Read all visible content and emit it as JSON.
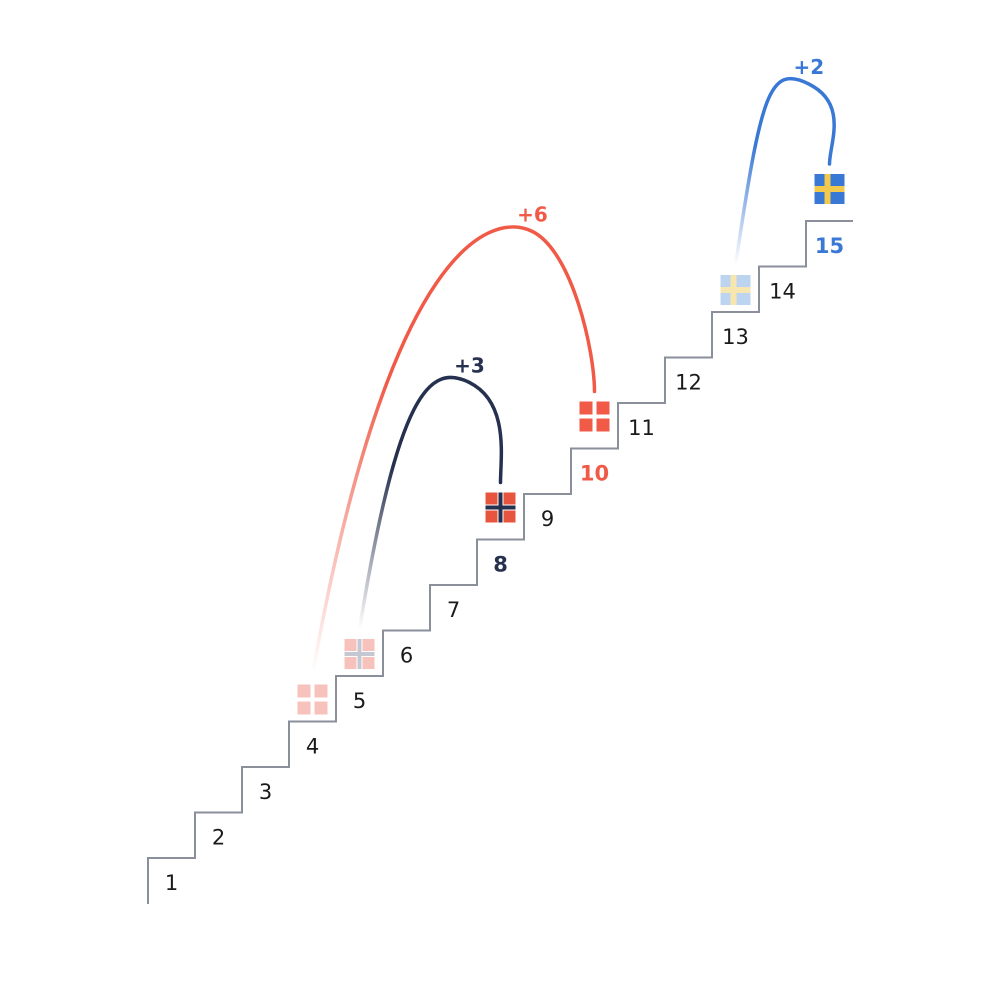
{
  "steps": [
    "1",
    "2",
    "3",
    "4",
    "5",
    "6",
    "7",
    "8",
    "9",
    "10",
    "11",
    "12",
    "13",
    "14",
    "15"
  ],
  "colors": {
    "stairs": "#8a8f9c",
    "step_text": "#1a1a1a"
  },
  "moves": [
    {
      "id": "denmark",
      "flag": "denmark-flag-icon",
      "from_step": 4,
      "to_step": 10,
      "jump_label": "+6",
      "rank_label": "10",
      "color": "#f05a47",
      "faded_color": "#f7c2bb"
    },
    {
      "id": "norway",
      "flag": "norway-flag-icon",
      "from_step": 5,
      "to_step": 8,
      "jump_label": "+3",
      "rank_label": "8",
      "color": "#26304f",
      "faded_color": "#f7c2bb"
    },
    {
      "id": "sweden",
      "flag": "sweden-flag-icon",
      "from_step": 13,
      "to_step": 15,
      "jump_label": "+2",
      "rank_label": "15",
      "color": "#3a78d6",
      "faded_color": "#bcd4f0"
    }
  ]
}
